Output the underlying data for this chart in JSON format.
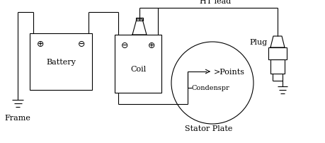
{
  "bg_color": "#ffffff",
  "line_color": "#000000",
  "labels": {
    "frame": "Frame",
    "battery": "Battery",
    "coil": "Coil",
    "ht_lead": "HT lead",
    "plug": "Plug",
    "stator_plate": "Stator Plate",
    "points": ">Points",
    "condenspr": "Condenspr"
  },
  "figsize": [
    4.59,
    2.03
  ],
  "dpi": 100
}
